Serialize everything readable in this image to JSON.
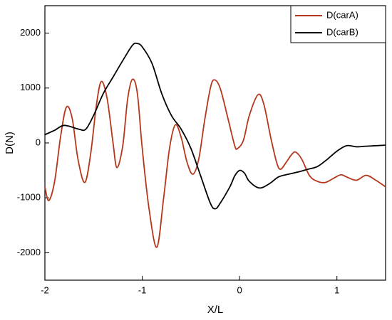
{
  "chart_data": {
    "type": "line",
    "x_label": "X/L",
    "y_label": "D(N)",
    "xlim": [
      -2,
      1.5
    ],
    "ylim": [
      -2500,
      2500
    ],
    "xticks": [
      -2,
      -1,
      0,
      1
    ],
    "yticks": [
      -2000,
      -1000,
      0,
      1000,
      2000
    ],
    "legend": "top-right",
    "series": [
      {
        "name": "D(carA)",
        "color": "#b5371b",
        "x": [
          -2,
          -1.96,
          -1.9,
          -1.84,
          -1.78,
          -1.72,
          -1.66,
          -1.59,
          -1.53,
          -1.47,
          -1.42,
          -1.36,
          -1.3,
          -1.26,
          -1.2,
          -1.15,
          -1.1,
          -1.05,
          -1.0,
          -0.93,
          -0.85,
          -0.78,
          -0.72,
          -0.66,
          -0.6,
          -0.54,
          -0.48,
          -0.42,
          -0.36,
          -0.3,
          -0.26,
          -0.2,
          -0.12,
          -0.05,
          -0.02,
          0.04,
          0.1,
          0.19,
          0.25,
          0.32,
          0.38,
          0.42,
          0.48,
          0.54,
          0.58,
          0.64,
          0.72,
          0.8,
          0.88,
          0.96,
          1.04,
          1.1,
          1.2,
          1.3,
          1.4,
          1.5
        ],
        "values": [
          -800,
          -1050,
          -700,
          100,
          650,
          450,
          -300,
          -720,
          -200,
          700,
          1120,
          800,
          0,
          -450,
          -50,
          800,
          1160,
          900,
          -100,
          -1200,
          -1900,
          -1000,
          -100,
          330,
          100,
          -350,
          -570,
          -300,
          400,
          1000,
          1150,
          1000,
          450,
          -50,
          -100,
          50,
          500,
          880,
          700,
          100,
          -350,
          -480,
          -350,
          -200,
          -170,
          -300,
          -600,
          -700,
          -720,
          -650,
          -580,
          -620,
          -680,
          -590,
          -680,
          -800
        ]
      },
      {
        "name": "D(carB)",
        "color": "#000000",
        "x": [
          -2,
          -1.9,
          -1.8,
          -1.65,
          -1.58,
          -1.5,
          -1.4,
          -1.3,
          -1.2,
          -1.1,
          -1.05,
          -1.0,
          -0.9,
          -0.8,
          -0.7,
          -0.6,
          -0.5,
          -0.4,
          -0.3,
          -0.25,
          -0.2,
          -0.1,
          -0.05,
          0,
          0.05,
          0.1,
          0.2,
          0.3,
          0.4,
          0.5,
          0.6,
          0.7,
          0.8,
          0.9,
          1.0,
          1.1,
          1.2,
          1.3,
          1.5
        ],
        "values": [
          150,
          230,
          320,
          250,
          250,
          500,
          900,
          1200,
          1500,
          1780,
          1810,
          1750,
          1450,
          900,
          500,
          250,
          -100,
          -600,
          -1100,
          -1200,
          -1100,
          -800,
          -600,
          -500,
          -550,
          -700,
          -820,
          -750,
          -620,
          -570,
          -530,
          -480,
          -430,
          -300,
          -150,
          -50,
          -70,
          -60,
          -40
        ]
      }
    ]
  }
}
